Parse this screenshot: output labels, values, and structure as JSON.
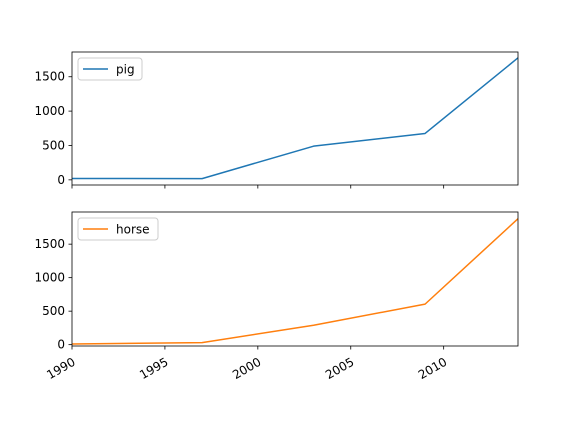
{
  "chart_data": {
    "type": "line",
    "subplots": "stacked vertically, shared x axis",
    "x": [
      1990,
      1997,
      2003,
      2009,
      2014
    ],
    "xlim": [
      1990,
      2014
    ],
    "xticks": [
      1990,
      1995,
      2000,
      2005,
      2010
    ],
    "xtick_labels": [
      "1990",
      "1995",
      "2000",
      "2005",
      "2010"
    ],
    "xtick_rotation": 30,
    "grid": false,
    "series": [
      {
        "name": "pig",
        "color": "#1f77b4",
        "values": [
          20,
          18,
          490,
          675,
          1775
        ],
        "ylim": [
          -75,
          1860
        ],
        "yticks": [
          0,
          500,
          1000,
          1500
        ],
        "ytick_labels": [
          "0",
          "500",
          "1000",
          "1500"
        ],
        "legend_position": "upper left"
      },
      {
        "name": "horse",
        "color": "#ff7f0e",
        "values": [
          10,
          30,
          290,
          605,
          1880
        ],
        "ylim": [
          -20,
          1980
        ],
        "yticks": [
          0,
          500,
          1000,
          1500
        ],
        "ytick_labels": [
          "0",
          "500",
          "1000",
          "1500"
        ],
        "legend_position": "upper left"
      }
    ]
  }
}
